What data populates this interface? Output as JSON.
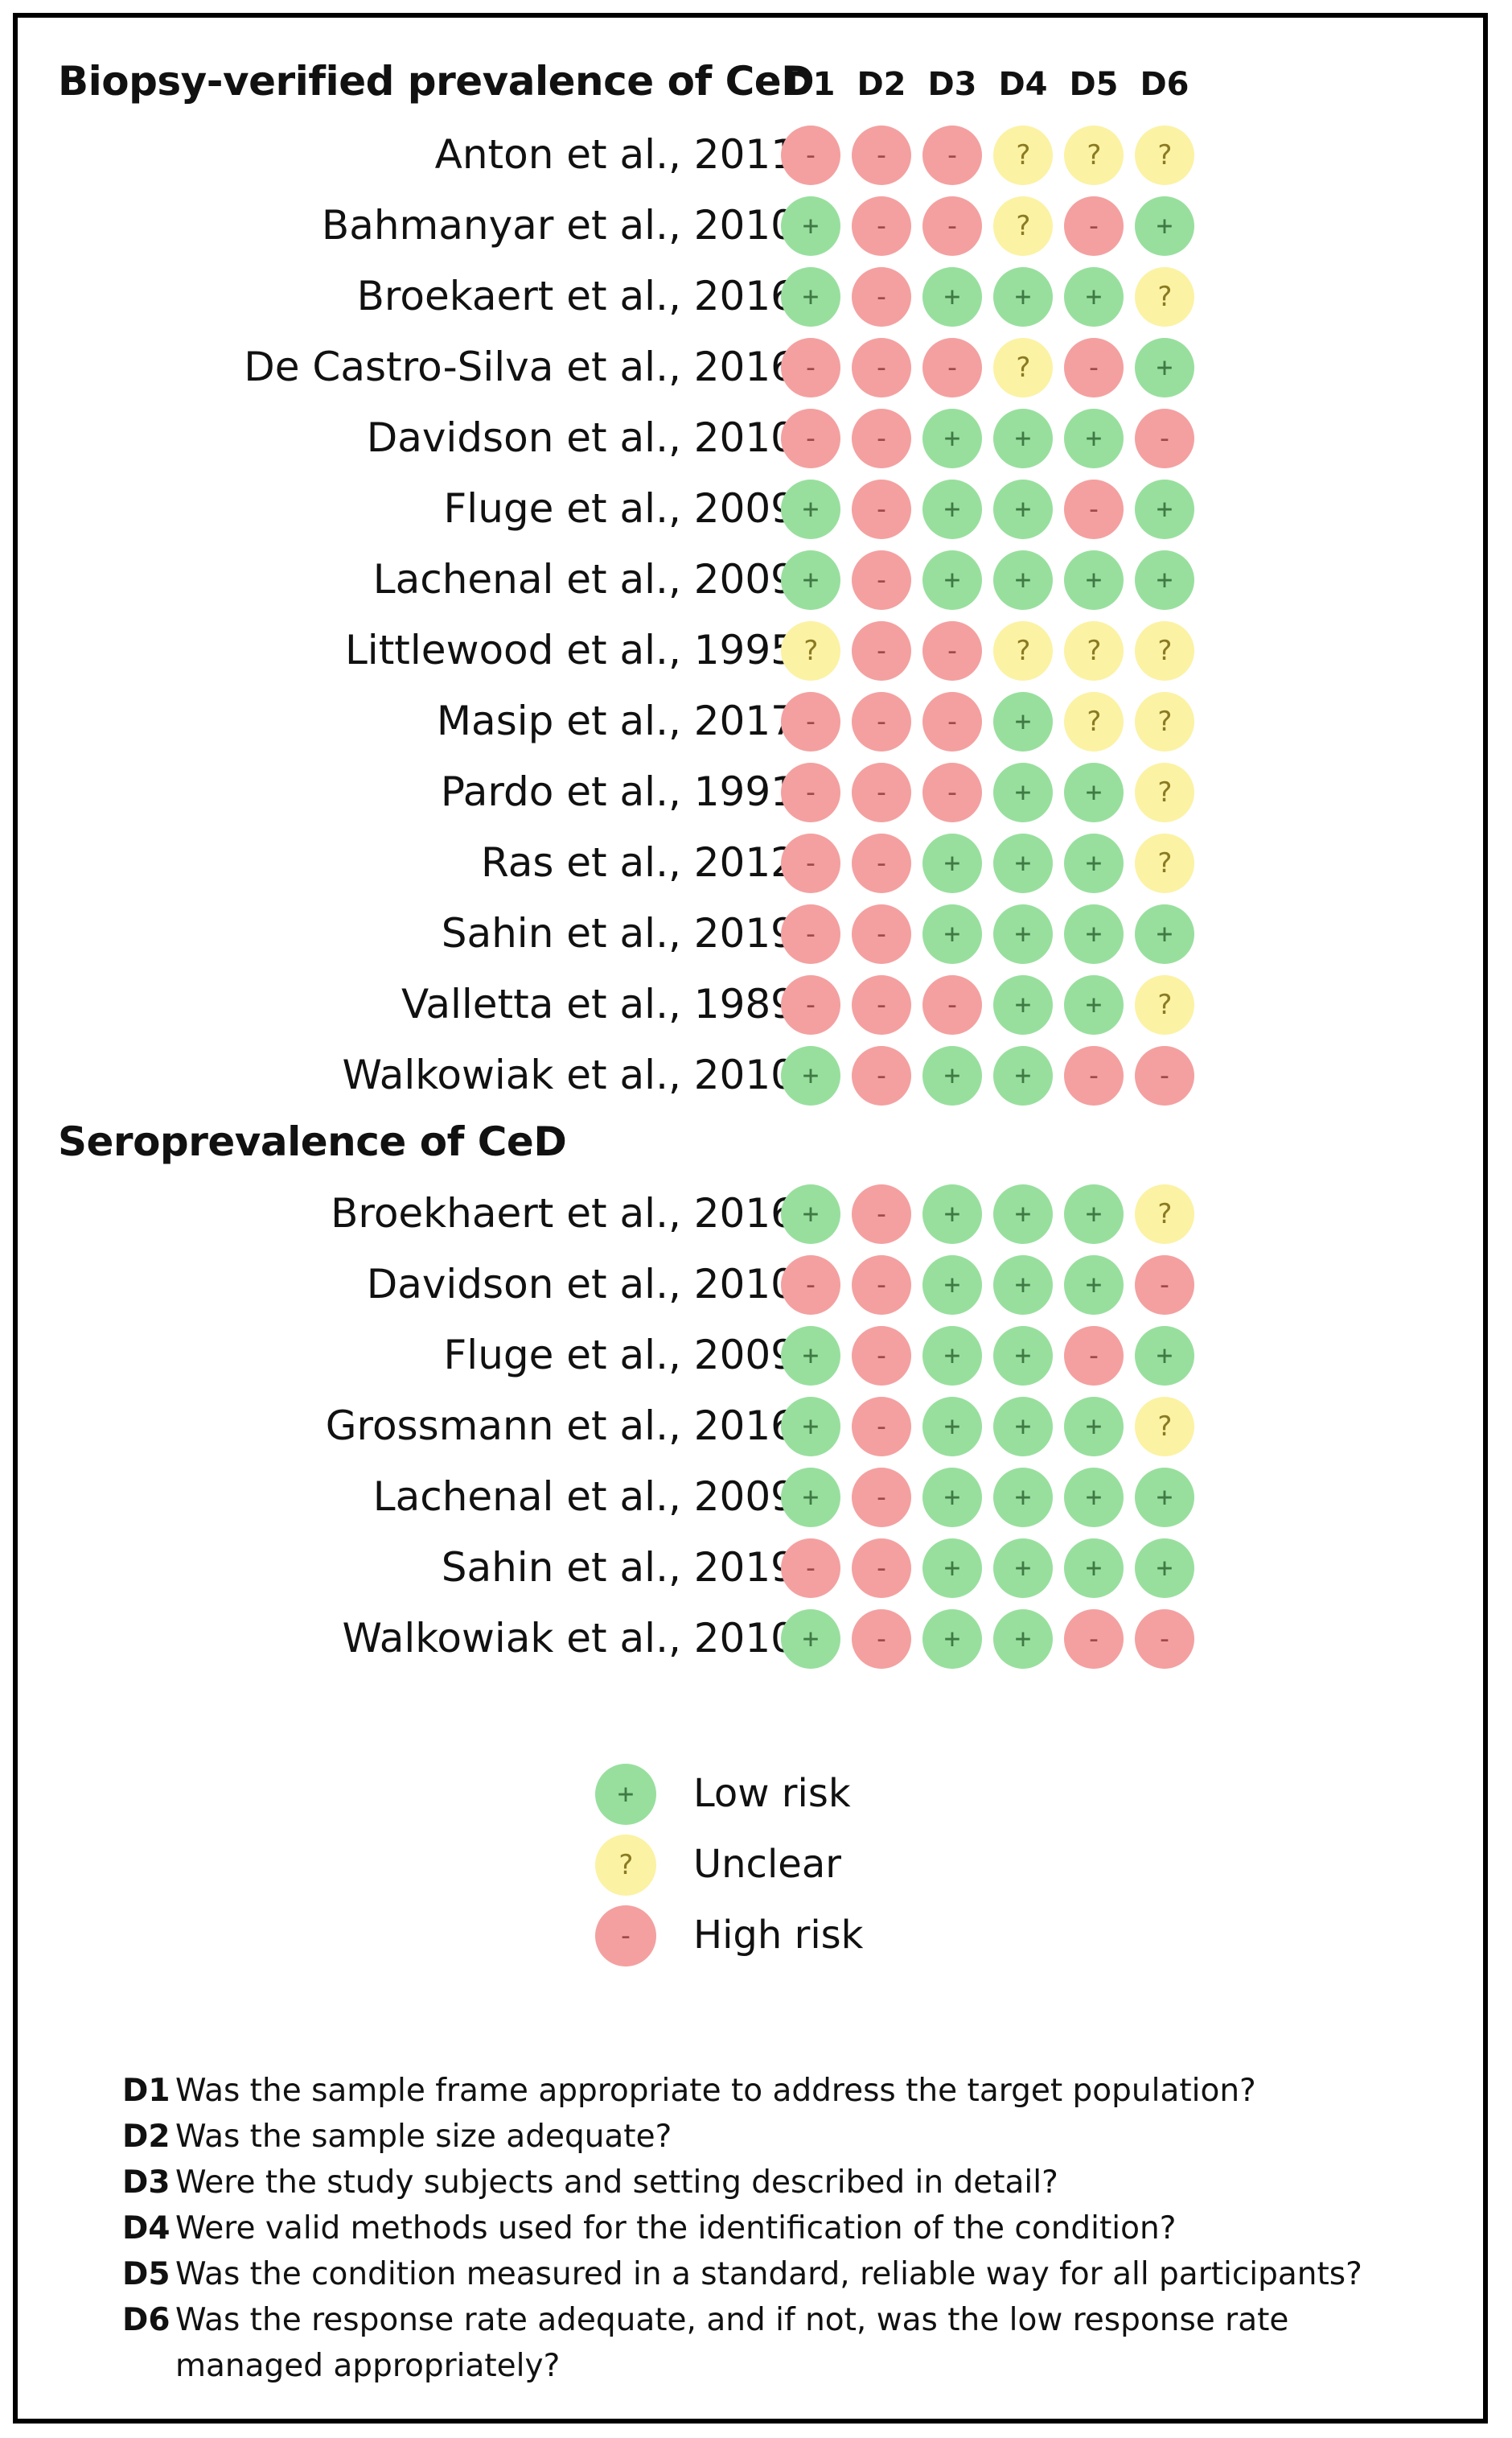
{
  "columns": [
    "D1",
    "D2",
    "D3",
    "D4",
    "D5",
    "D6"
  ],
  "symbols": {
    "low": "+",
    "unclear": "?",
    "high": "-"
  },
  "colors": {
    "low": "#98df9e",
    "unclear": "#fbf2a4",
    "high": "#f4a0a0"
  },
  "sections": [
    {
      "title": "Biopsy-verified prevalence of CeD",
      "studies": [
        {
          "name": "Anton et al., 2011",
          "ratings": [
            "high",
            "high",
            "high",
            "unclear",
            "unclear",
            "unclear"
          ]
        },
        {
          "name": "Bahmanyar et al., 2010",
          "ratings": [
            "low",
            "high",
            "high",
            "unclear",
            "high",
            "low"
          ]
        },
        {
          "name": "Broekaert et al., 2016",
          "ratings": [
            "low",
            "high",
            "low",
            "low",
            "low",
            "unclear"
          ]
        },
        {
          "name": "De Castro-Silva et al., 2016",
          "ratings": [
            "high",
            "high",
            "high",
            "unclear",
            "high",
            "low"
          ]
        },
        {
          "name": "Davidson et al., 2010",
          "ratings": [
            "high",
            "high",
            "low",
            "low",
            "low",
            "high"
          ]
        },
        {
          "name": "Fluge et al., 2009",
          "ratings": [
            "low",
            "high",
            "low",
            "low",
            "high",
            "low"
          ]
        },
        {
          "name": "Lachenal et al., 2009",
          "ratings": [
            "low",
            "high",
            "low",
            "low",
            "low",
            "low"
          ]
        },
        {
          "name": "Littlewood et al., 1995",
          "ratings": [
            "unclear",
            "high",
            "high",
            "unclear",
            "unclear",
            "unclear"
          ]
        },
        {
          "name": "Masip et al., 2017",
          "ratings": [
            "high",
            "high",
            "high",
            "low",
            "unclear",
            "unclear"
          ]
        },
        {
          "name": "Pardo et al., 1991",
          "ratings": [
            "high",
            "high",
            "high",
            "low",
            "low",
            "unclear"
          ]
        },
        {
          "name": "Ras et al., 2012",
          "ratings": [
            "high",
            "high",
            "low",
            "low",
            "low",
            "unclear"
          ]
        },
        {
          "name": "Sahin et al., 2019",
          "ratings": [
            "high",
            "high",
            "low",
            "low",
            "low",
            "low"
          ]
        },
        {
          "name": "Valletta et al., 1989",
          "ratings": [
            "high",
            "high",
            "high",
            "low",
            "low",
            "unclear"
          ]
        },
        {
          "name": "Walkowiak et al., 2010",
          "ratings": [
            "low",
            "high",
            "low",
            "low",
            "high",
            "high"
          ]
        }
      ]
    },
    {
      "title": "Seroprevalence of CeD",
      "studies": [
        {
          "name": "Broekhaert et al., 2016",
          "ratings": [
            "low",
            "high",
            "low",
            "low",
            "low",
            "unclear"
          ]
        },
        {
          "name": "Davidson et al., 2010",
          "ratings": [
            "high",
            "high",
            "low",
            "low",
            "low",
            "high"
          ]
        },
        {
          "name": "Fluge et al., 2009",
          "ratings": [
            "low",
            "high",
            "low",
            "low",
            "high",
            "low"
          ]
        },
        {
          "name": "Grossmann et al., 2016",
          "ratings": [
            "low",
            "high",
            "low",
            "low",
            "low",
            "unclear"
          ]
        },
        {
          "name": "Lachenal et al., 2009",
          "ratings": [
            "low",
            "high",
            "low",
            "low",
            "low",
            "low"
          ]
        },
        {
          "name": "Sahin et al., 2019",
          "ratings": [
            "high",
            "high",
            "low",
            "low",
            "low",
            "low"
          ]
        },
        {
          "name": "Walkowiak et al., 2010",
          "ratings": [
            "low",
            "high",
            "low",
            "low",
            "high",
            "high"
          ]
        }
      ]
    }
  ],
  "legend": [
    {
      "key": "low",
      "label": "Low risk"
    },
    {
      "key": "unclear",
      "label": "Unclear"
    },
    {
      "key": "high",
      "label": "High risk"
    }
  ],
  "notes": [
    {
      "code": "D1",
      "text": "Was the sample frame appropriate to address the target population?"
    },
    {
      "code": "D2",
      "text": "Was the sample size adequate?"
    },
    {
      "code": "D3",
      "text": "Were the study subjects and setting described in detail?"
    },
    {
      "code": "D4",
      "text": "Were valid methods used for the identification of the condition?"
    },
    {
      "code": "D5",
      "text": "Was the condition measured in a standard, reliable way for all participants?"
    },
    {
      "code": "D6",
      "text": "Was the response rate adequate, and if not, was the low response rate managed appropriately?"
    }
  ]
}
